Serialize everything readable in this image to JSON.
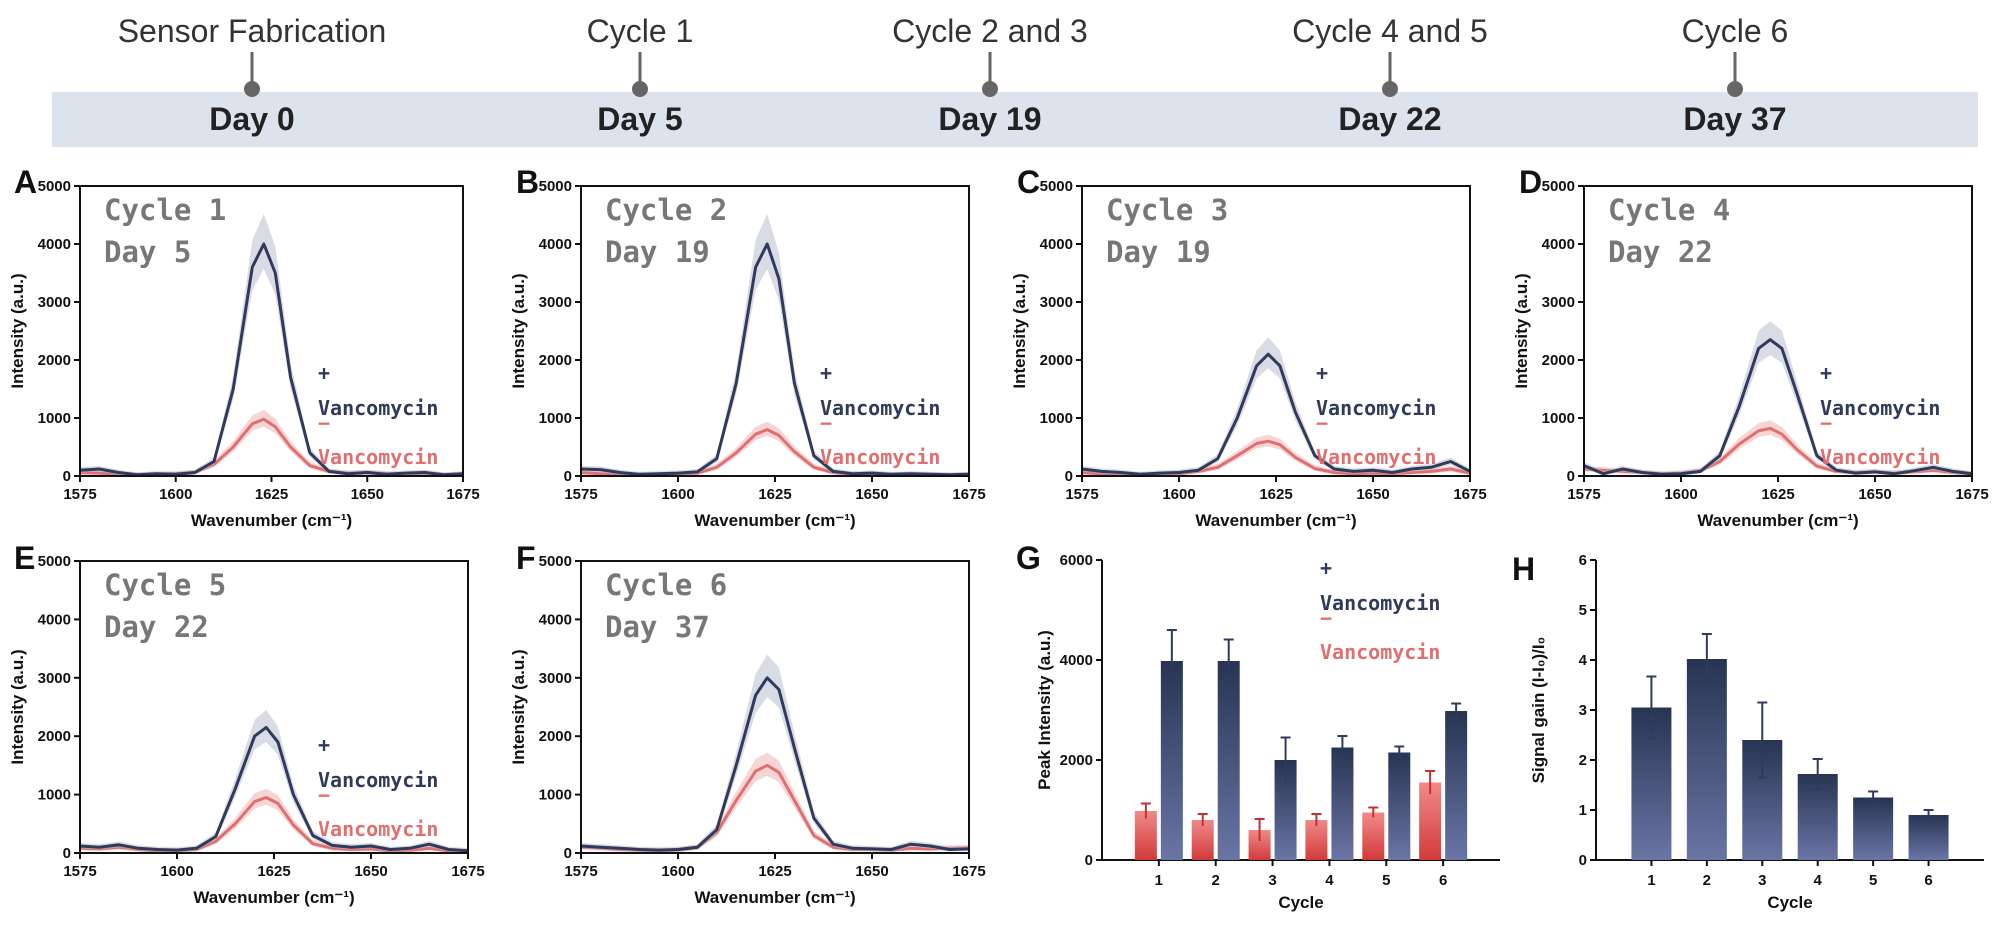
{
  "timeline": {
    "events": [
      {
        "label": "Sensor Fabrication",
        "day": "Day 0"
      },
      {
        "label": "Cycle 1",
        "day": "Day 5"
      },
      {
        "label": "Cycle 2 and 3",
        "day": "Day 19"
      },
      {
        "label": "Cycle 4 and 5",
        "day": "Day 22"
      },
      {
        "label": "Cycle 6",
        "day": "Day 37"
      }
    ],
    "band_color": "#dde3ec",
    "marker_color": "#666666"
  },
  "legend": {
    "plus_sign": "+",
    "minus_sign": "−",
    "plus_label": "Vancomycin",
    "minus_label": "Vancomycin",
    "plus_color": "#2f3a5c",
    "minus_color": "#e07070"
  },
  "chart_data": [
    {
      "panel": "A",
      "type": "line",
      "cycle_label": "Cycle 1",
      "day_label": "Day 5",
      "xlabel": "Wavenumber (cm⁻¹)",
      "ylabel": "Intensity (a.u.)",
      "xlim": [
        1575,
        1675
      ],
      "ylim": [
        0,
        5000
      ],
      "xticks": [
        1575,
        1600,
        1625,
        1650,
        1675
      ],
      "yticks": [
        0,
        1000,
        2000,
        3000,
        4000,
        5000
      ],
      "x": [
        1575,
        1580,
        1585,
        1590,
        1595,
        1600,
        1605,
        1610,
        1615,
        1620,
        1623,
        1626,
        1630,
        1635,
        1640,
        1645,
        1650,
        1655,
        1660,
        1665,
        1670,
        1675
      ],
      "series": [
        {
          "name": "+Vancomycin",
          "values": [
            100,
            120,
            60,
            20,
            40,
            30,
            60,
            250,
            1500,
            3600,
            4000,
            3500,
            1700,
            400,
            80,
            40,
            60,
            30,
            50,
            60,
            20,
            40
          ]
        },
        {
          "name": "−Vancomycin",
          "values": [
            60,
            50,
            30,
            20,
            30,
            40,
            60,
            200,
            500,
            900,
            980,
            850,
            500,
            180,
            80,
            50,
            60,
            40,
            30,
            50,
            20,
            30
          ]
        }
      ]
    },
    {
      "panel": "B",
      "type": "line",
      "cycle_label": "Cycle 2",
      "day_label": "Day 19",
      "xlabel": "Wavenumber (cm⁻¹)",
      "ylabel": "Intensity (a.u.)",
      "xlim": [
        1575,
        1675
      ],
      "ylim": [
        0,
        5000
      ],
      "xticks": [
        1575,
        1600,
        1625,
        1650,
        1675
      ],
      "yticks": [
        0,
        1000,
        2000,
        3000,
        4000,
        5000
      ],
      "x": [
        1575,
        1580,
        1585,
        1590,
        1595,
        1600,
        1605,
        1610,
        1615,
        1620,
        1623,
        1626,
        1630,
        1635,
        1640,
        1645,
        1650,
        1655,
        1660,
        1665,
        1670,
        1675
      ],
      "series": [
        {
          "name": "+Vancomycin",
          "values": [
            120,
            110,
            60,
            30,
            40,
            50,
            70,
            300,
            1600,
            3600,
            4000,
            3400,
            1600,
            350,
            80,
            40,
            50,
            30,
            40,
            30,
            20,
            30
          ]
        },
        {
          "name": "−Vancomycin",
          "values": [
            60,
            40,
            20,
            10,
            20,
            30,
            50,
            150,
            400,
            720,
            800,
            700,
            420,
            150,
            60,
            30,
            40,
            20,
            30,
            20,
            10,
            20
          ]
        }
      ]
    },
    {
      "panel": "C",
      "type": "line",
      "cycle_label": "Cycle 3",
      "day_label": "Day 19",
      "xlabel": "Wavenumber (cm⁻¹)",
      "ylabel": "Intensity (a.u.)",
      "xlim": [
        1575,
        1675
      ],
      "ylim": [
        0,
        5000
      ],
      "xticks": [
        1575,
        1600,
        1625,
        1650,
        1675
      ],
      "yticks": [
        0,
        1000,
        2000,
        3000,
        4000,
        5000
      ],
      "x": [
        1575,
        1580,
        1585,
        1590,
        1595,
        1600,
        1605,
        1610,
        1615,
        1620,
        1623,
        1626,
        1630,
        1635,
        1640,
        1645,
        1650,
        1655,
        1660,
        1665,
        1670,
        1675
      ],
      "series": [
        {
          "name": "+Vancomycin",
          "values": [
            120,
            80,
            60,
            30,
            50,
            60,
            100,
            300,
            1000,
            1900,
            2100,
            1900,
            1100,
            350,
            120,
            80,
            100,
            60,
            120,
            150,
            250,
            80
          ]
        },
        {
          "name": "−Vancomycin",
          "values": [
            60,
            40,
            20,
            20,
            30,
            40,
            80,
            150,
            350,
            560,
            600,
            540,
            320,
            130,
            60,
            40,
            50,
            40,
            60,
            80,
            120,
            50
          ]
        }
      ]
    },
    {
      "panel": "D",
      "type": "line",
      "cycle_label": "Cycle 4",
      "day_label": "Day 22",
      "xlabel": "Wavenumber (cm⁻¹)",
      "ylabel": "Intensity (a.u.)",
      "xlim": [
        1575,
        1675
      ],
      "ylim": [
        0,
        5000
      ],
      "xticks": [
        1575,
        1600,
        1625,
        1650,
        1675
      ],
      "yticks": [
        0,
        1000,
        2000,
        3000,
        4000,
        5000
      ],
      "x": [
        1575,
        1580,
        1585,
        1590,
        1595,
        1600,
        1605,
        1610,
        1615,
        1620,
        1623,
        1626,
        1630,
        1635,
        1640,
        1645,
        1650,
        1655,
        1660,
        1665,
        1670,
        1675
      ],
      "series": [
        {
          "name": "+Vancomycin",
          "values": [
            180,
            40,
            120,
            60,
            30,
            40,
            80,
            350,
            1200,
            2200,
            2350,
            2200,
            1400,
            350,
            100,
            50,
            70,
            40,
            90,
            150,
            80,
            40
          ]
        },
        {
          "name": "−Vancomycin",
          "values": [
            120,
            100,
            80,
            60,
            40,
            50,
            90,
            250,
            550,
            780,
            820,
            720,
            450,
            170,
            80,
            60,
            70,
            50,
            70,
            100,
            60,
            40
          ]
        }
      ]
    },
    {
      "panel": "E",
      "type": "line",
      "cycle_label": "Cycle 5",
      "day_label": "Day 22",
      "xlabel": "Wavenumber (cm⁻¹)",
      "ylabel": "Intensity (a.u.)",
      "xlim": [
        1575,
        1675
      ],
      "ylim": [
        0,
        5000
      ],
      "xticks": [
        1575,
        1600,
        1625,
        1650,
        1675
      ],
      "yticks": [
        0,
        1000,
        2000,
        3000,
        4000,
        5000
      ],
      "x": [
        1575,
        1580,
        1585,
        1590,
        1595,
        1600,
        1605,
        1610,
        1615,
        1620,
        1623,
        1626,
        1630,
        1635,
        1640,
        1645,
        1650,
        1655,
        1660,
        1665,
        1670,
        1675
      ],
      "series": [
        {
          "name": "+Vancomycin",
          "values": [
            120,
            100,
            140,
            80,
            60,
            50,
            80,
            280,
            1100,
            2000,
            2150,
            1900,
            1000,
            300,
            130,
            100,
            120,
            60,
            80,
            150,
            60,
            40
          ]
        },
        {
          "name": "−Vancomycin",
          "values": [
            80,
            70,
            100,
            60,
            40,
            40,
            60,
            200,
            500,
            880,
            950,
            850,
            480,
            160,
            80,
            60,
            70,
            40,
            50,
            80,
            40,
            30
          ]
        }
      ]
    },
    {
      "panel": "F",
      "type": "line",
      "cycle_label": "Cycle 6",
      "day_label": "Day 37",
      "xlabel": "Wavenumber (cm⁻¹)",
      "ylabel": "Intensity (a.u.)",
      "xlim": [
        1575,
        1675
      ],
      "ylim": [
        0,
        5000
      ],
      "xticks": [
        1575,
        1600,
        1625,
        1650,
        1675
      ],
      "yticks": [
        0,
        1000,
        2000,
        3000,
        4000,
        5000
      ],
      "x": [
        1575,
        1580,
        1585,
        1590,
        1595,
        1600,
        1605,
        1610,
        1615,
        1620,
        1623,
        1626,
        1630,
        1635,
        1640,
        1645,
        1650,
        1655,
        1660,
        1665,
        1670,
        1675
      ],
      "series": [
        {
          "name": "+Vancomycin",
          "values": [
            120,
            100,
            80,
            60,
            50,
            60,
            100,
            400,
            1500,
            2700,
            3000,
            2800,
            1800,
            600,
            150,
            80,
            70,
            60,
            150,
            120,
            60,
            70
          ]
        },
        {
          "name": "−Vancomycin",
          "values": [
            100,
            80,
            60,
            50,
            40,
            50,
            90,
            350,
            900,
            1400,
            1500,
            1380,
            900,
            300,
            100,
            60,
            60,
            50,
            80,
            70,
            80,
            90
          ]
        }
      ]
    },
    {
      "panel": "G",
      "type": "bar",
      "xlabel": "Cycle",
      "ylabel": "Peak Intensity (a.u.)",
      "ylim": [
        0,
        6000
      ],
      "yticks": [
        0,
        2000,
        4000,
        6000
      ],
      "categories": [
        "1",
        "2",
        "3",
        "4",
        "5",
        "6"
      ],
      "series": [
        {
          "name": "−Vancomycin",
          "values": [
            980,
            800,
            600,
            800,
            950,
            1550
          ],
          "errors": [
            150,
            120,
            220,
            120,
            100,
            230
          ]
        },
        {
          "name": "+Vancomycin",
          "values": [
            3980,
            3980,
            2000,
            2250,
            2150,
            2980
          ],
          "errors": [
            620,
            430,
            450,
            230,
            120,
            150
          ]
        }
      ]
    },
    {
      "panel": "H",
      "type": "bar",
      "xlabel": "Cycle",
      "ylabel": "Signal gain (I-I₀)/I₀",
      "ylim": [
        0,
        6
      ],
      "yticks": [
        0,
        1,
        2,
        3,
        4,
        5,
        6
      ],
      "categories": [
        "1",
        "2",
        "3",
        "4",
        "5",
        "6"
      ],
      "series": [
        {
          "values": [
            3.05,
            4.02,
            2.4,
            1.72,
            1.25,
            0.9
          ],
          "errors": [
            0.62,
            0.5,
            0.75,
            0.3,
            0.12,
            0.1
          ]
        }
      ]
    }
  ]
}
